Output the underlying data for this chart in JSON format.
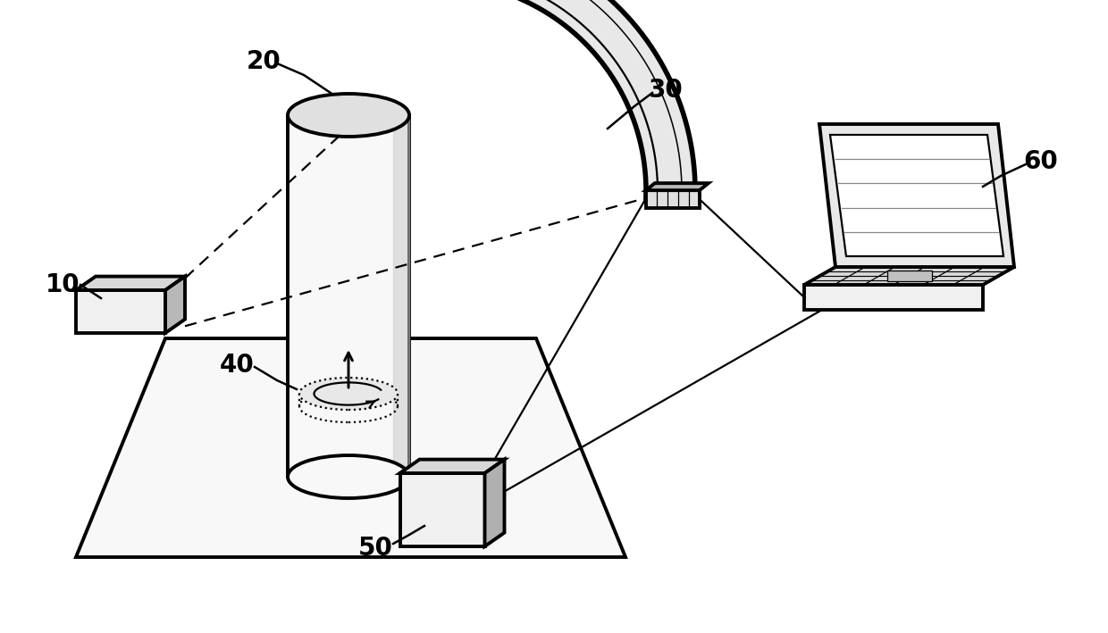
{
  "background_color": "#ffffff",
  "line_color": "#000000",
  "fill_light": "#f0f0f0",
  "fill_mid": "#d0d0d0",
  "fill_dark": "#a0a0a0",
  "label_10": "10",
  "label_20": "20",
  "label_30": "30",
  "label_40": "40",
  "label_50": "50",
  "label_60": "60",
  "label_fontsize": 20,
  "lw_main": 2.8,
  "lw_thin": 1.6,
  "lw_thick": 4.0
}
